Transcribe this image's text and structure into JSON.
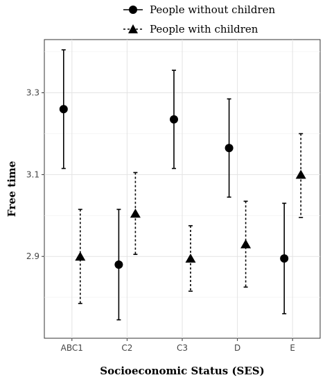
{
  "chart_data": {
    "type": "scatter",
    "categories": [
      "ABC1",
      "C2",
      "C3",
      "D",
      "E"
    ],
    "xlabel": "Socioeconomic Status (SES)",
    "ylabel": "Free time",
    "yticks": [
      2.9,
      3.1,
      3.3
    ],
    "ylim": [
      2.7,
      3.43
    ],
    "grid": true,
    "legend_position": "top",
    "series": [
      {
        "name": "People without children",
        "marker": "circle",
        "line_style": "solid",
        "color": "#000000",
        "values": [
          3.26,
          2.88,
          3.235,
          3.165,
          2.895
        ],
        "lower": [
          3.115,
          2.745,
          3.115,
          3.045,
          2.76
        ],
        "upper": [
          3.405,
          3.015,
          3.355,
          3.285,
          3.03
        ]
      },
      {
        "name": "People with children",
        "marker": "triangle",
        "line_style": "dashed",
        "color": "#000000",
        "values": [
          2.9,
          3.005,
          2.895,
          2.93,
          3.1
        ],
        "lower": [
          2.785,
          2.905,
          2.815,
          2.825,
          2.995
        ],
        "upper": [
          3.015,
          3.105,
          2.975,
          3.035,
          3.2
        ]
      }
    ]
  }
}
